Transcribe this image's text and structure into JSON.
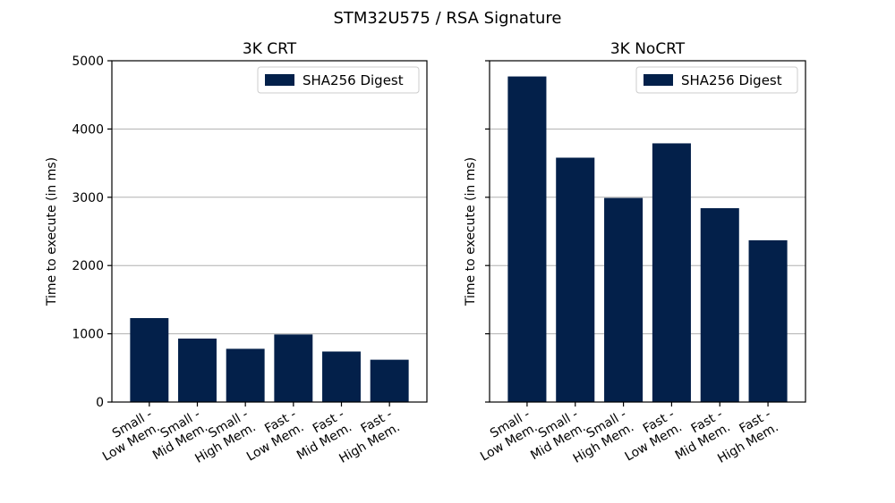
{
  "figure": {
    "suptitle": "STM32U575 / RSA Signature"
  },
  "colors": {
    "bar": "#03204a",
    "grid": "#b0b0b0",
    "axis": "#000000",
    "legend_border": "#cccccc"
  },
  "chart_data": [
    {
      "type": "bar",
      "title": "3K CRT",
      "xlabel": "",
      "ylabel": "Time to execute (in ms)",
      "categories": [
        [
          "Small -",
          "Low Mem."
        ],
        [
          "Small -",
          "Mid Mem."
        ],
        [
          "Small -",
          "High Mem."
        ],
        [
          "Fast -",
          "Low Mem."
        ],
        [
          "Fast -",
          "Mid Mem."
        ],
        [
          "Fast -",
          "High Mem."
        ]
      ],
      "series": [
        {
          "name": "SHA256 Digest",
          "values": [
            1230,
            930,
            780,
            990,
            740,
            620
          ]
        }
      ],
      "ylim": [
        0,
        5000
      ],
      "yticks": [
        0,
        1000,
        2000,
        3000,
        4000,
        5000
      ],
      "show_ytick_labels": true,
      "grid": true,
      "legend": "top-right"
    },
    {
      "type": "bar",
      "title": "3K NoCRT",
      "xlabel": "",
      "ylabel": "Time to execute (in ms)",
      "categories": [
        [
          "Small -",
          "Low Mem."
        ],
        [
          "Small -",
          "Mid Mem."
        ],
        [
          "Small -",
          "High Mem."
        ],
        [
          "Fast -",
          "Low Mem."
        ],
        [
          "Fast -",
          "Mid Mem."
        ],
        [
          "Fast -",
          "High Mem."
        ]
      ],
      "series": [
        {
          "name": "SHA256 Digest",
          "values": [
            4770,
            3580,
            2990,
            3790,
            2840,
            2370
          ]
        }
      ],
      "ylim": [
        0,
        5000
      ],
      "yticks": [
        0,
        1000,
        2000,
        3000,
        4000,
        5000
      ],
      "show_ytick_labels": false,
      "grid": true,
      "legend": "top-right"
    }
  ]
}
